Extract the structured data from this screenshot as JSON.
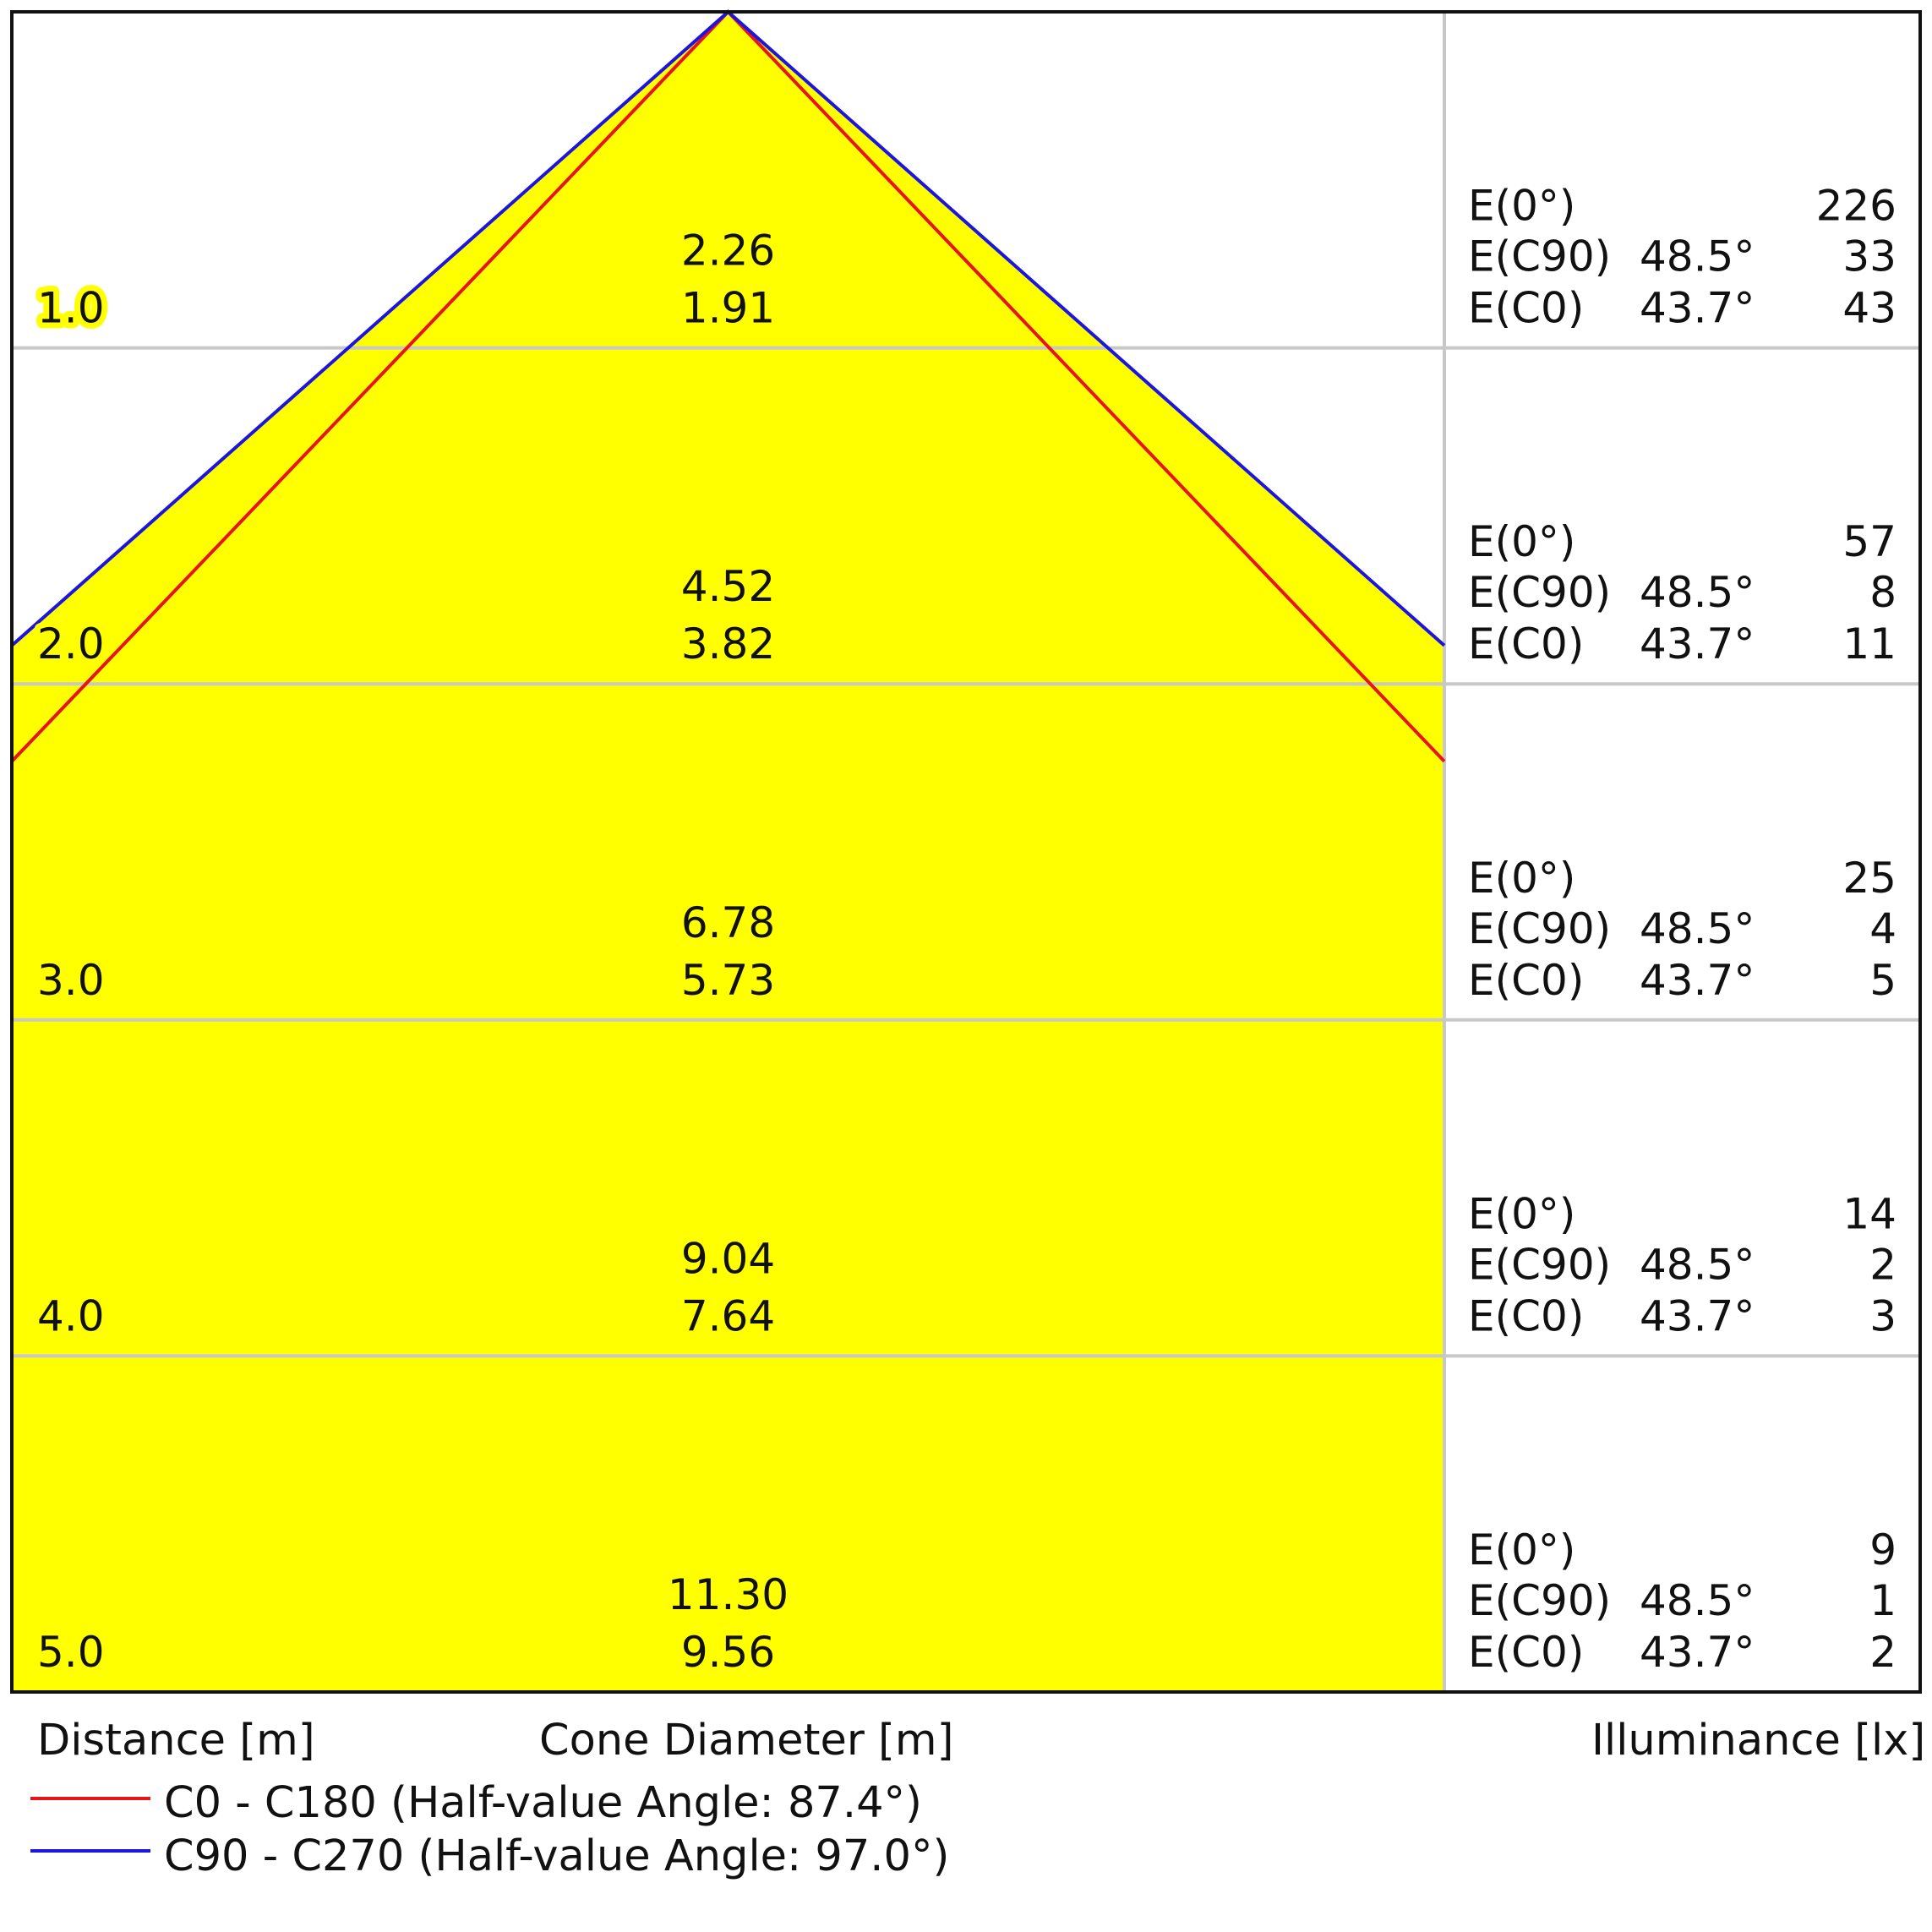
{
  "chart_data": {
    "type": "area",
    "title": "",
    "distance_label": "Distance [m]",
    "cone_label": "Cone Diameter [m]",
    "illuminance_label": "Illuminance [lx]",
    "rows": [
      {
        "distance": "1.0",
        "diameter_c90": "2.26",
        "diameter_c0": "1.91",
        "e0_label": "E(0°)",
        "e0": "226",
        "ec90_label": "E(C90)",
        "ec90_angle": "48.5°",
        "ec90": "33",
        "ec0_label": "E(C0)",
        "ec0_angle": "43.7°",
        "ec0": "43"
      },
      {
        "distance": "2.0",
        "diameter_c90": "4.52",
        "diameter_c0": "3.82",
        "e0_label": "E(0°)",
        "e0": "57",
        "ec90_label": "E(C90)",
        "ec90_angle": "48.5°",
        "ec90": "8",
        "ec0_label": "E(C0)",
        "ec0_angle": "43.7°",
        "ec0": "11"
      },
      {
        "distance": "3.0",
        "diameter_c90": "6.78",
        "diameter_c0": "5.73",
        "e0_label": "E(0°)",
        "e0": "25",
        "ec90_label": "E(C90)",
        "ec90_angle": "48.5°",
        "ec90": "4",
        "ec0_label": "E(C0)",
        "ec0_angle": "43.7°",
        "ec0": "5"
      },
      {
        "distance": "4.0",
        "diameter_c90": "9.04",
        "diameter_c0": "7.64",
        "e0_label": "E(0°)",
        "e0": "14",
        "ec90_label": "E(C90)",
        "ec90_angle": "48.5°",
        "ec90": "2",
        "ec0_label": "E(C0)",
        "ec0_angle": "43.7°",
        "ec0": "3"
      },
      {
        "distance": "5.0",
        "diameter_c90": "11.30",
        "diameter_c0": "9.56",
        "e0_label": "E(0°)",
        "e0": "9",
        "ec90_label": "E(C90)",
        "ec90_angle": "48.5°",
        "ec90": "1",
        "ec0_label": "E(C0)",
        "ec0_angle": "43.7°",
        "ec0": "2"
      }
    ],
    "series": [
      {
        "name": "C0 - C180 (Half-value Angle: 87.4°)",
        "half_angle_deg": 87.4,
        "color": "#e8141c"
      },
      {
        "name": "C90 - C270 (Half-value Angle: 97.0°)",
        "half_angle_deg": 97.0,
        "color": "#1c14e0"
      }
    ],
    "fill_color": "#ffff00",
    "grid": true
  }
}
